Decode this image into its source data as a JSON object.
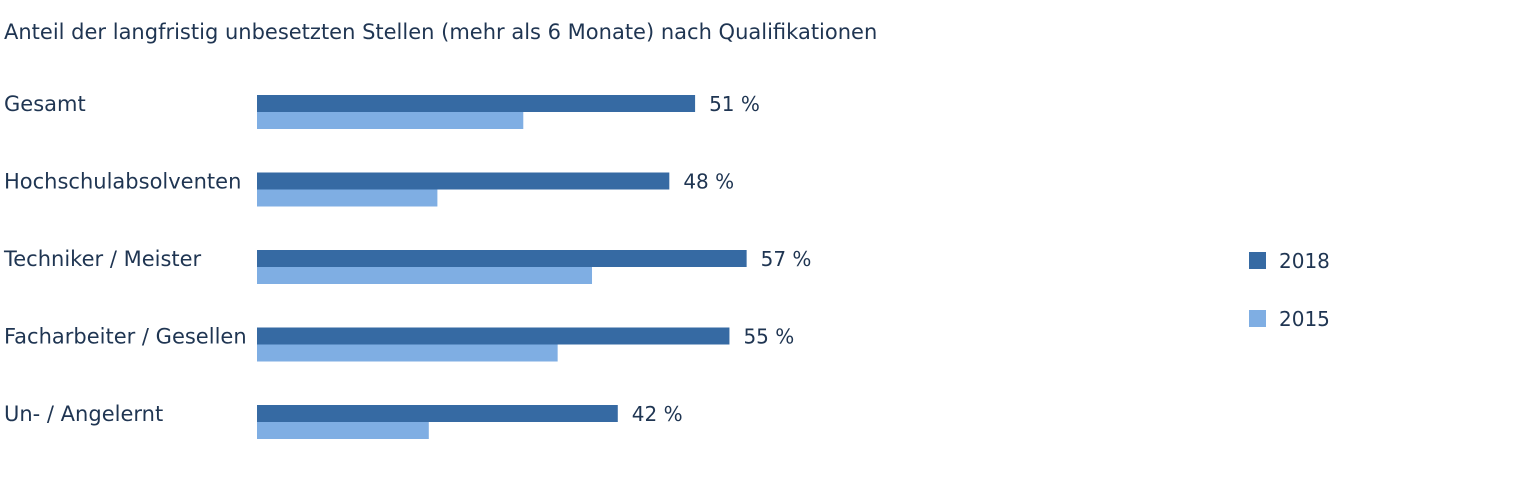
{
  "chart_data": {
    "type": "bar",
    "orientation": "horizontal",
    "title": "Anteil der langfristig unbesetzten Stellen (mehr als 6 Monate) nach Qualifikationen",
    "categories": [
      "Gesamt",
      "Hochschulabsolventen",
      "Techniker / Meister",
      "Facharbeiter / Gesellen",
      "Un- / Angelernt"
    ],
    "series": [
      {
        "name": "2018",
        "color": "#366aa3",
        "values": [
          51,
          48,
          57,
          55,
          42
        ],
        "labels": [
          "51 %",
          "48 %",
          "57 %",
          "55 %",
          "42 %"
        ]
      },
      {
        "name": "2015",
        "color": "#7faee3",
        "values": [
          31,
          21,
          39,
          35,
          20
        ]
      }
    ],
    "xlim": [
      0,
      100
    ],
    "grid": false,
    "legend": "right"
  }
}
